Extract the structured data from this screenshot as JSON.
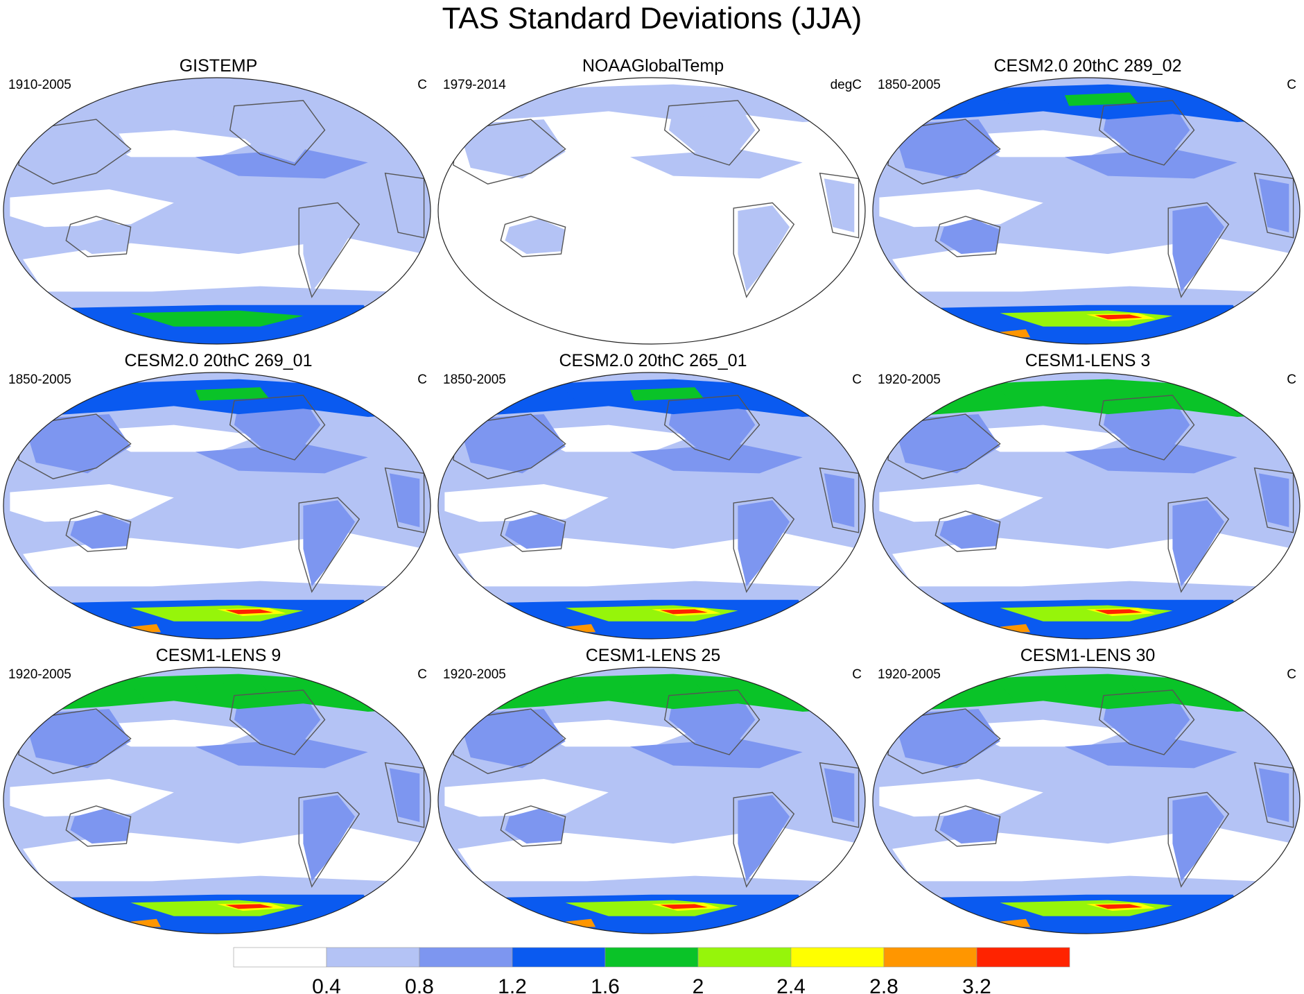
{
  "title": "TAS Standard Deviations (JJA)",
  "colors": [
    "#ffffff",
    "#b4c3f5",
    "#7d96f0",
    "#0a5af0",
    "#0ac328",
    "#96f50a",
    "#ffff00",
    "#ff9600",
    "#ff2300"
  ],
  "colorbar": {
    "labels": [
      "0.4",
      "0.8",
      "1.2",
      "1.6",
      "2",
      "2.4",
      "2.8",
      "3.2"
    ]
  },
  "panels": [
    {
      "title": "GISTEMP",
      "period": "1910-2005",
      "units": "C",
      "levels": {
        "arctic": 1,
        "ocean": 1,
        "land": 1,
        "antarctic": 4
      }
    },
    {
      "title": "NOAAGlobalTemp",
      "period": "1979-2014",
      "units": "degC",
      "levels": {
        "arctic": 1,
        "ocean": 0,
        "land": 1,
        "antarctic": 0
      }
    },
    {
      "title": "CESM2.0 20thC 289_02",
      "period": "1850-2005",
      "units": "C",
      "levels": {
        "arctic": 3,
        "ocean": 1,
        "land": 2,
        "antarctic": 8
      }
    },
    {
      "title": "CESM2.0 20thC 269_01",
      "period": "1850-2005",
      "units": "C",
      "levels": {
        "arctic": 3,
        "ocean": 1,
        "land": 2,
        "antarctic": 8
      }
    },
    {
      "title": "CESM2.0 20thC 265_01",
      "period": "1850-2005",
      "units": "C",
      "levels": {
        "arctic": 3,
        "ocean": 1,
        "land": 2,
        "antarctic": 8
      }
    },
    {
      "title": "CESM1-LENS 3",
      "period": "1920-2005",
      "units": "C",
      "levels": {
        "arctic": 4,
        "ocean": 1,
        "land": 2,
        "antarctic": 8
      }
    },
    {
      "title": "CESM1-LENS 9",
      "period": "1920-2005",
      "units": "C",
      "levels": {
        "arctic": 4,
        "ocean": 1,
        "land": 2,
        "antarctic": 8
      }
    },
    {
      "title": "CESM1-LENS 25",
      "period": "1920-2005",
      "units": "C",
      "levels": {
        "arctic": 4,
        "ocean": 1,
        "land": 2,
        "antarctic": 8
      }
    },
    {
      "title": "CESM1-LENS 30",
      "period": "1920-2005",
      "units": "C",
      "levels": {
        "arctic": 4,
        "ocean": 1,
        "land": 2,
        "antarctic": 8
      }
    }
  ]
}
